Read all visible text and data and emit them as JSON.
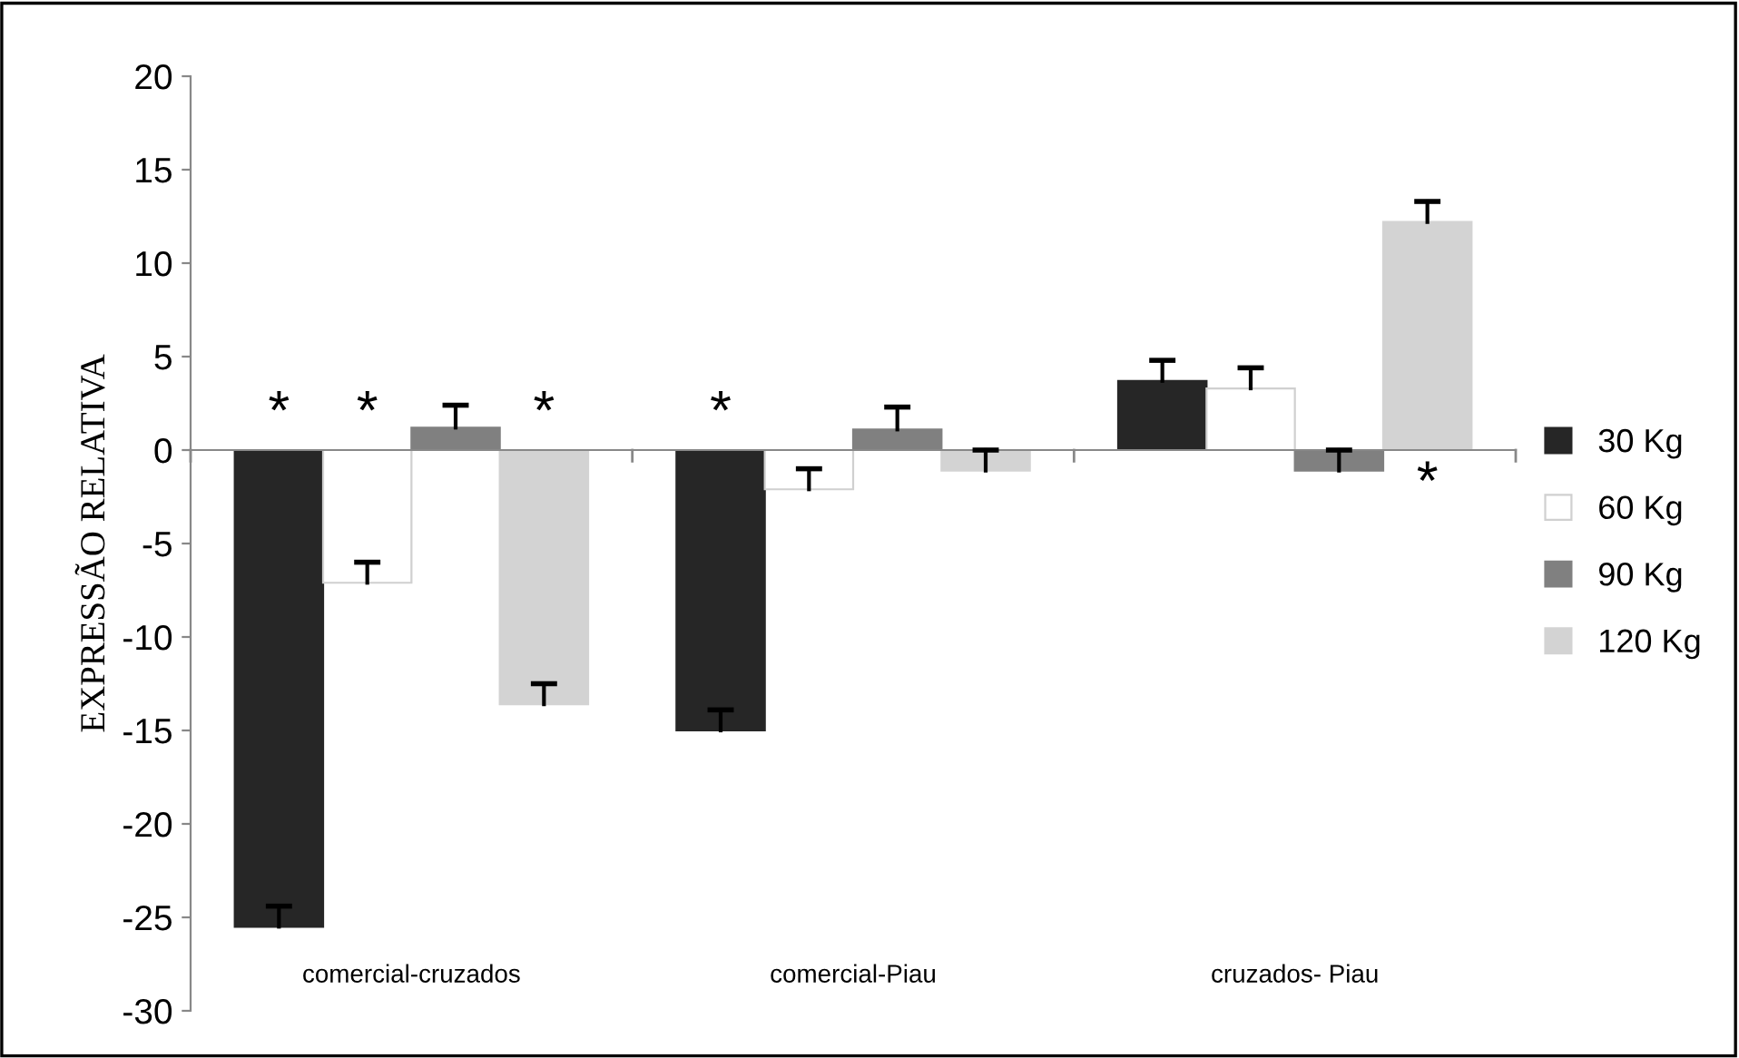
{
  "chart_data": {
    "type": "bar",
    "ylabel": "EXPRESSÃO RELATIVA",
    "categories": [
      "comercial-cruzados",
      "comercial-Piau",
      "cruzados- Piau"
    ],
    "series": [
      {
        "name": "30 Kg",
        "color": "#262626",
        "values": [
          -25.5,
          -15.0,
          3.7
        ],
        "errors": [
          [
            -25.5,
            -24.4
          ],
          [
            -15.0,
            -13.9
          ],
          [
            3.7,
            4.8
          ]
        ],
        "value_labels": [
          "*",
          "*",
          null
        ]
      },
      {
        "name": "60 Kg",
        "color": "#ffffff",
        "values": [
          -7.1,
          -2.1,
          3.3
        ],
        "errors": [
          [
            -7.1,
            -6.0
          ],
          [
            -2.1,
            -1.0
          ],
          [
            3.3,
            4.4
          ]
        ],
        "value_labels": [
          "*",
          null,
          null
        ]
      },
      {
        "name": "90 Kg",
        "color": "#808080",
        "values": [
          1.2,
          1.1,
          -1.1
        ],
        "errors": [
          [
            1.2,
            2.4
          ],
          [
            1.1,
            2.3
          ],
          [
            -1.1,
            0.0
          ]
        ],
        "value_labels": [
          null,
          null,
          null
        ]
      },
      {
        "name": "120 Kg",
        "color": "#d3d3d3",
        "values": [
          -13.6,
          -1.1,
          12.2
        ],
        "errors": [
          [
            -13.6,
            -12.5
          ],
          [
            -1.1,
            0.0
          ],
          [
            12.2,
            13.3
          ]
        ],
        "value_labels": [
          "*",
          null,
          "*"
        ]
      }
    ],
    "ylim": [
      -30,
      20
    ],
    "yticks": [
      -30,
      -25,
      -20,
      -15,
      -10,
      -5,
      0,
      5,
      10,
      15,
      20
    ],
    "legend": "right"
  }
}
